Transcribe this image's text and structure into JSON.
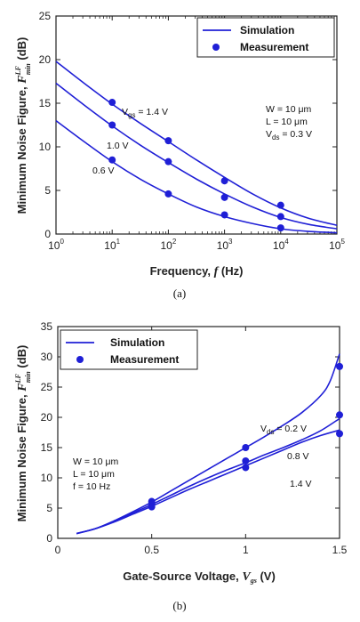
{
  "colors": {
    "series": "#1f1fd6",
    "axis": "#222222"
  },
  "chart_data": [
    {
      "type": "line",
      "xscale": "log",
      "xlim": [
        1,
        100000
      ],
      "ylim": [
        0,
        25
      ],
      "xlabel_prefix": "Frequency, ",
      "xlabel_var": "f",
      "xlabel_unit": " (Hz)",
      "ylabel_prefix": "Minimum Noise Figure, ",
      "ylabel_var": "F",
      "ylabel_sup": "LF",
      "ylabel_sub": "min",
      "ylabel_unit": " (dB)",
      "xticks": [
        1,
        10,
        100,
        1000,
        10000,
        100000
      ],
      "xtick_mantissa": "10",
      "xtick_exponents": [
        "0",
        "1",
        "2",
        "3",
        "4",
        "5"
      ],
      "yticks": [
        0,
        5,
        10,
        15,
        20,
        25
      ],
      "ytick_labels": [
        "0",
        "5",
        "10",
        "15",
        "20",
        "25"
      ],
      "legend": {
        "position": "top-right",
        "line_label": "Simulation",
        "marker_label": "Measurement"
      },
      "annotations": {
        "conditions": [
          "W = 10 μm",
          "L  = 10 μm"
        ],
        "vds_prefix": "V",
        "vds_sub": "ds",
        "vds_value": " = 0.3 V"
      },
      "series": [
        {
          "name_prefix": "V",
          "name_sub": "gs",
          "name_value": " = 1.4 V",
          "sim_x": [
            1,
            3.16,
            10,
            31.6,
            100,
            316,
            1000,
            3160,
            10000,
            31600,
            100000
          ],
          "sim_y": [
            19.8,
            17.3,
            14.9,
            12.7,
            10.6,
            8.5,
            6.5,
            4.6,
            3.0,
            1.8,
            1.0
          ],
          "meas_x": [
            10,
            100,
            1000,
            10000
          ],
          "meas_y": [
            15.1,
            10.7,
            6.1,
            3.3
          ]
        },
        {
          "name": "1.0 V",
          "sim_x": [
            1,
            3.16,
            10,
            31.6,
            100,
            316,
            1000,
            3160,
            10000,
            31600,
            100000
          ],
          "sim_y": [
            17.3,
            14.8,
            12.4,
            10.2,
            8.2,
            6.3,
            4.6,
            3.1,
            1.9,
            1.1,
            0.6
          ],
          "meas_x": [
            10,
            100,
            1000,
            10000
          ],
          "meas_y": [
            12.5,
            8.3,
            4.2,
            2.0
          ]
        },
        {
          "name": "0.6 V",
          "sim_x": [
            1,
            3.16,
            10,
            31.6,
            100,
            316,
            1000,
            3160,
            10000,
            31600,
            100000
          ],
          "sim_y": [
            13.0,
            10.6,
            8.3,
            6.3,
            4.6,
            3.1,
            2.0,
            1.2,
            0.6,
            0.3,
            0.15
          ],
          "meas_x": [
            10,
            100,
            1000,
            10000
          ],
          "meas_y": [
            8.5,
            4.6,
            2.2,
            0.7
          ]
        }
      ],
      "caption": "(a)"
    },
    {
      "type": "line",
      "xlim": [
        0,
        1.5
      ],
      "ylim": [
        0,
        35
      ],
      "xlabel_prefix": "Gate-Source Voltage, ",
      "xlabel_var": "V",
      "xlabel_sub": "gs",
      "xlabel_unit": " (V)",
      "ylabel_prefix": "Minimum Noise Figure, ",
      "ylabel_var": "F",
      "ylabel_sup": "LF",
      "ylabel_sub": "min",
      "ylabel_unit": " (dB)",
      "xticks": [
        0,
        0.5,
        1,
        1.5
      ],
      "xtick_labels": [
        "0",
        "0.5",
        "1",
        "1.5"
      ],
      "yticks": [
        0,
        5,
        10,
        15,
        20,
        25,
        30,
        35
      ],
      "ytick_labels": [
        "0",
        "5",
        "10",
        "15",
        "20",
        "25",
        "30",
        "35"
      ],
      "legend": {
        "position": "top-left",
        "line_label": "Simulation",
        "marker_label": "Measurement"
      },
      "annotations": {
        "conditions": [
          "W = 10 μm",
          "L  = 10 μm",
          "f  = 10 Hz"
        ]
      },
      "series": [
        {
          "name_prefix": "V",
          "name_sub": "ds",
          "name_value": " = 0.2 V",
          "sim_x": [
            0.1,
            0.2,
            0.3,
            0.4,
            0.5,
            0.6,
            0.7,
            0.8,
            0.9,
            1.0,
            1.1,
            1.2,
            1.3,
            1.4,
            1.45,
            1.5
          ],
          "sim_y": [
            0.8,
            1.6,
            2.9,
            4.4,
            6.0,
            7.8,
            9.6,
            11.4,
            13.2,
            15.0,
            16.8,
            18.7,
            20.8,
            23.6,
            26.0,
            30.5
          ],
          "meas_x": [
            0.5,
            1.0,
            1.5
          ],
          "meas_y": [
            6.1,
            15.0,
            28.4
          ]
        },
        {
          "name": "0.8 V",
          "sim_x": [
            0.1,
            0.2,
            0.3,
            0.4,
            0.5,
            0.6,
            0.7,
            0.8,
            0.9,
            1.0,
            1.1,
            1.2,
            1.3,
            1.4,
            1.5
          ],
          "sim_y": [
            0.8,
            1.6,
            2.8,
            4.2,
            5.6,
            7.1,
            8.6,
            10.0,
            11.3,
            12.5,
            13.8,
            15.0,
            16.3,
            17.8,
            19.8
          ],
          "meas_x": [
            0.5,
            1.0,
            1.5
          ],
          "meas_y": [
            5.6,
            12.8,
            20.4
          ]
        },
        {
          "name": "1.4 V",
          "sim_x": [
            0.1,
            0.2,
            0.3,
            0.4,
            0.5,
            0.6,
            0.7,
            0.8,
            0.9,
            1.0,
            1.1,
            1.2,
            1.3,
            1.4,
            1.5
          ],
          "sim_y": [
            0.8,
            1.6,
            2.7,
            4.0,
            5.3,
            6.7,
            8.1,
            9.4,
            10.7,
            12.0,
            13.3,
            14.6,
            15.9,
            17.0,
            17.9
          ],
          "meas_x": [
            0.5,
            1.0,
            1.5
          ],
          "meas_y": [
            5.2,
            11.7,
            17.3
          ]
        }
      ],
      "caption": "(b)"
    }
  ]
}
